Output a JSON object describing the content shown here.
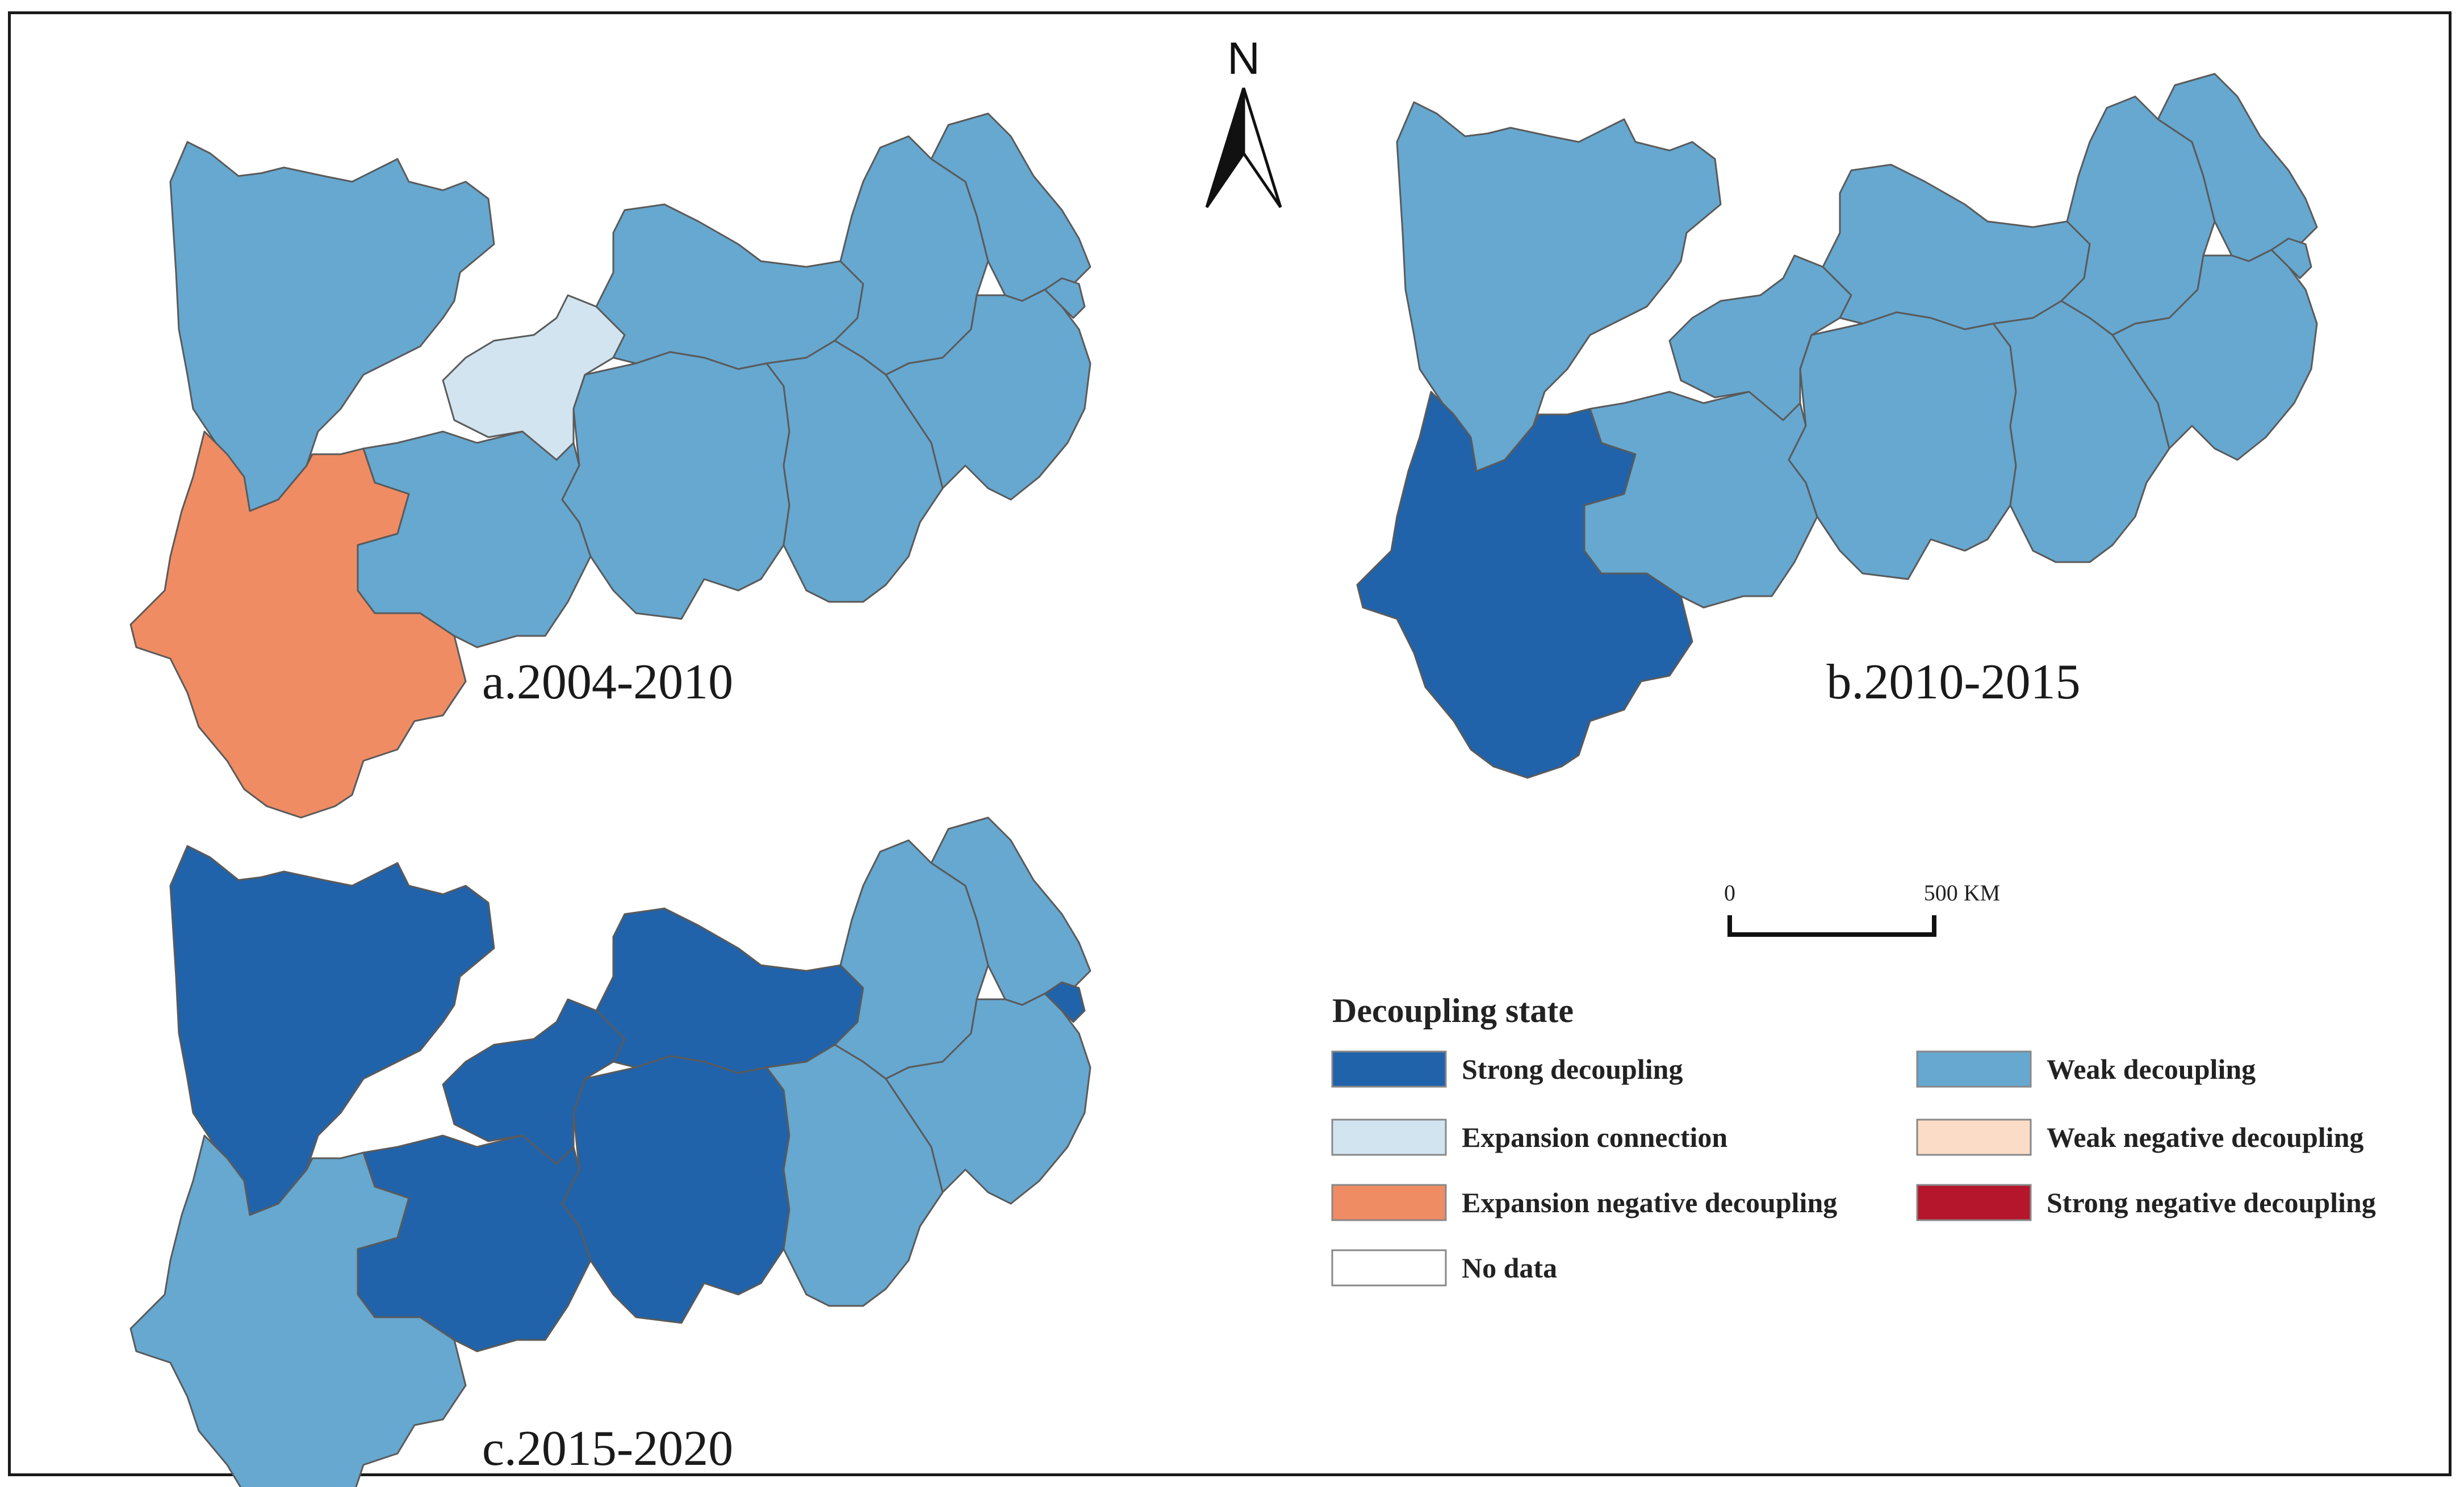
{
  "colors": {
    "strong_decoupling": "#2163aa",
    "weak_decoupling": "#66a8d0",
    "expansion_connection": "#d2e4ef",
    "weak_negative_decoupling": "#fbdcc6",
    "expansion_negative_decoupling": "#ef8c64",
    "strong_negative_decoupling": "#b5162c",
    "no_data": "#ffffff"
  },
  "maps": [
    {
      "id": "a",
      "caption": "a.2004-2010",
      "regions": {
        "sichuan": "weak_decoupling",
        "chongqing": "expansion_connection",
        "yunnan": "expansion_negative_decoupling",
        "guizhou": "weak_decoupling",
        "hubei": "weak_decoupling",
        "hunan": "weak_decoupling",
        "jiangxi": "weak_decoupling",
        "anhui": "weak_decoupling",
        "jiangsu": "weak_decoupling",
        "zhejiang": "weak_decoupling",
        "shanghai": "weak_decoupling"
      }
    },
    {
      "id": "b",
      "caption": "b.2010-2015",
      "regions": {
        "sichuan": "weak_decoupling",
        "chongqing": "weak_decoupling",
        "yunnan": "strong_decoupling",
        "guizhou": "weak_decoupling",
        "hubei": "weak_decoupling",
        "hunan": "weak_decoupling",
        "jiangxi": "weak_decoupling",
        "anhui": "weak_decoupling",
        "jiangsu": "weak_decoupling",
        "zhejiang": "weak_decoupling",
        "shanghai": "weak_decoupling"
      }
    },
    {
      "id": "c",
      "caption": "c.2015-2020",
      "regions": {
        "sichuan": "strong_decoupling",
        "chongqing": "strong_decoupling",
        "yunnan": "weak_decoupling",
        "guizhou": "strong_decoupling",
        "hubei": "strong_decoupling",
        "hunan": "strong_decoupling",
        "jiangxi": "weak_decoupling",
        "anhui": "weak_decoupling",
        "jiangsu": "weak_decoupling",
        "zhejiang": "weak_decoupling",
        "shanghai": "strong_decoupling"
      }
    }
  ],
  "north_arrow": {
    "label": "N"
  },
  "scale_bar": {
    "start_label": "0",
    "end_label": "500 KM"
  },
  "legend": {
    "title": "Decoupling state",
    "items": [
      {
        "key": "strong_decoupling",
        "label": "Strong decoupling"
      },
      {
        "key": "weak_decoupling",
        "label": "Weak decoupling"
      },
      {
        "key": "expansion_connection",
        "label": "Expansion connection"
      },
      {
        "key": "weak_negative_decoupling",
        "label": "Weak negative decoupling"
      },
      {
        "key": "expansion_negative_decoupling",
        "label": "Expansion negative decoupling"
      },
      {
        "key": "strong_negative_decoupling",
        "label": "Strong negative decoupling"
      },
      {
        "key": "no_data",
        "label": "No data"
      }
    ]
  }
}
